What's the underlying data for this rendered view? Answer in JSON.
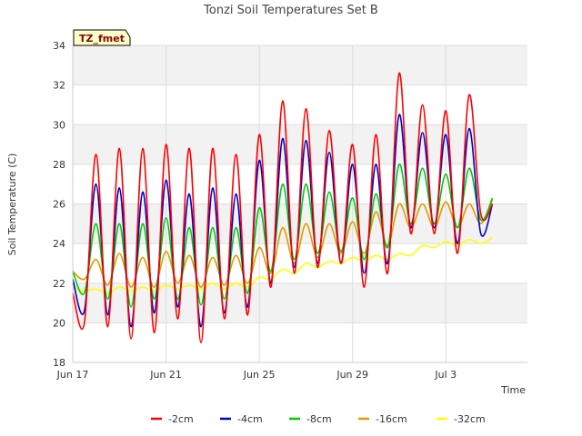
{
  "chart_data": {
    "type": "line",
    "title": "Tonzi Soil Temperatures Set B",
    "xlabel": "Time",
    "ylabel": "Soil Temperature (C)",
    "badge": "TZ_fmet",
    "x_start": "Jun 17",
    "x_range_days": [
      0,
      19.5
    ],
    "ylim": [
      18,
      34
    ],
    "yticks": [
      18,
      20,
      22,
      24,
      26,
      28,
      30,
      32,
      34
    ],
    "xticks": [
      {
        "day": 0,
        "label": "Jun 17"
      },
      {
        "day": 4,
        "label": "Jun 21"
      },
      {
        "day": 8,
        "label": "Jun 25"
      },
      {
        "day": 12,
        "label": "Jun 29"
      },
      {
        "day": 16,
        "label": "Jul 3"
      }
    ],
    "grid": true,
    "legend_position": "bottom",
    "x_days": [
      0,
      0.5,
      1,
      1.5,
      2,
      2.5,
      3,
      3.5,
      4,
      4.5,
      5,
      5.5,
      6,
      6.5,
      7,
      7.5,
      8,
      8.5,
      9,
      9.5,
      10,
      10.5,
      11,
      11.5,
      12,
      12.5,
      13,
      13.5,
      14,
      14.5,
      15,
      15.5,
      16,
      16.5,
      17,
      17.5,
      18
    ],
    "series": [
      {
        "name": "-2cm",
        "color": "#ff0000",
        "values": [
          21.5,
          20.0,
          28.5,
          19.8,
          28.8,
          19.2,
          28.8,
          19.5,
          29.0,
          20.2,
          28.8,
          19.0,
          28.8,
          20.2,
          28.5,
          20.4,
          29.5,
          21.8,
          31.2,
          22.5,
          30.8,
          22.8,
          29.7,
          23.0,
          29.0,
          21.8,
          29.5,
          22.5,
          32.6,
          24.5,
          31.0,
          24.5,
          30.7,
          23.5,
          31.5,
          25.5,
          26.0
        ]
      },
      {
        "name": "-4cm",
        "color": "#0000cc",
        "values": [
          22.2,
          20.6,
          27.0,
          20.4,
          26.8,
          19.8,
          26.6,
          20.5,
          27.2,
          20.8,
          26.5,
          19.8,
          26.8,
          20.5,
          26.5,
          20.8,
          28.2,
          22.0,
          29.3,
          22.8,
          29.2,
          23.0,
          28.6,
          23.0,
          28.0,
          22.5,
          28.0,
          23.0,
          30.5,
          24.8,
          29.6,
          24.8,
          29.5,
          24.0,
          29.8,
          24.5,
          26.0
        ]
      },
      {
        "name": "-8cm",
        "color": "#00cc00",
        "values": [
          22.6,
          21.5,
          25.0,
          21.2,
          25.0,
          20.8,
          25.0,
          21.2,
          25.3,
          21.2,
          24.8,
          20.9,
          24.8,
          21.2,
          24.8,
          21.5,
          25.8,
          22.6,
          27.0,
          23.2,
          27.0,
          23.5,
          26.6,
          23.6,
          26.3,
          23.2,
          26.5,
          23.8,
          28.0,
          25.0,
          27.8,
          25.0,
          27.5,
          24.8,
          27.8,
          25.2,
          26.3
        ]
      },
      {
        "name": "-16cm",
        "color": "#e69900",
        "values": [
          22.6,
          22.2,
          23.2,
          21.9,
          23.5,
          21.8,
          23.3,
          21.8,
          23.6,
          22.0,
          23.4,
          21.8,
          23.3,
          21.9,
          23.4,
          22.0,
          23.8,
          22.5,
          24.8,
          23.0,
          25.0,
          23.3,
          25.0,
          23.5,
          25.1,
          23.5,
          25.6,
          23.9,
          26.0,
          24.8,
          26.0,
          24.8,
          26.1,
          24.8,
          26.0,
          25.0,
          26.2
        ]
      },
      {
        "name": "-32cm",
        "color": "#ffff00",
        "values": [
          21.8,
          21.6,
          21.7,
          21.5,
          21.8,
          21.6,
          21.8,
          21.6,
          21.9,
          21.7,
          21.9,
          21.7,
          22.0,
          21.7,
          22.0,
          21.8,
          22.3,
          22.2,
          22.7,
          22.5,
          23.0,
          22.8,
          23.1,
          23.0,
          23.3,
          23.1,
          23.4,
          23.2,
          23.5,
          23.4,
          23.9,
          23.8,
          24.1,
          23.9,
          24.2,
          24.0,
          24.3
        ]
      }
    ]
  }
}
